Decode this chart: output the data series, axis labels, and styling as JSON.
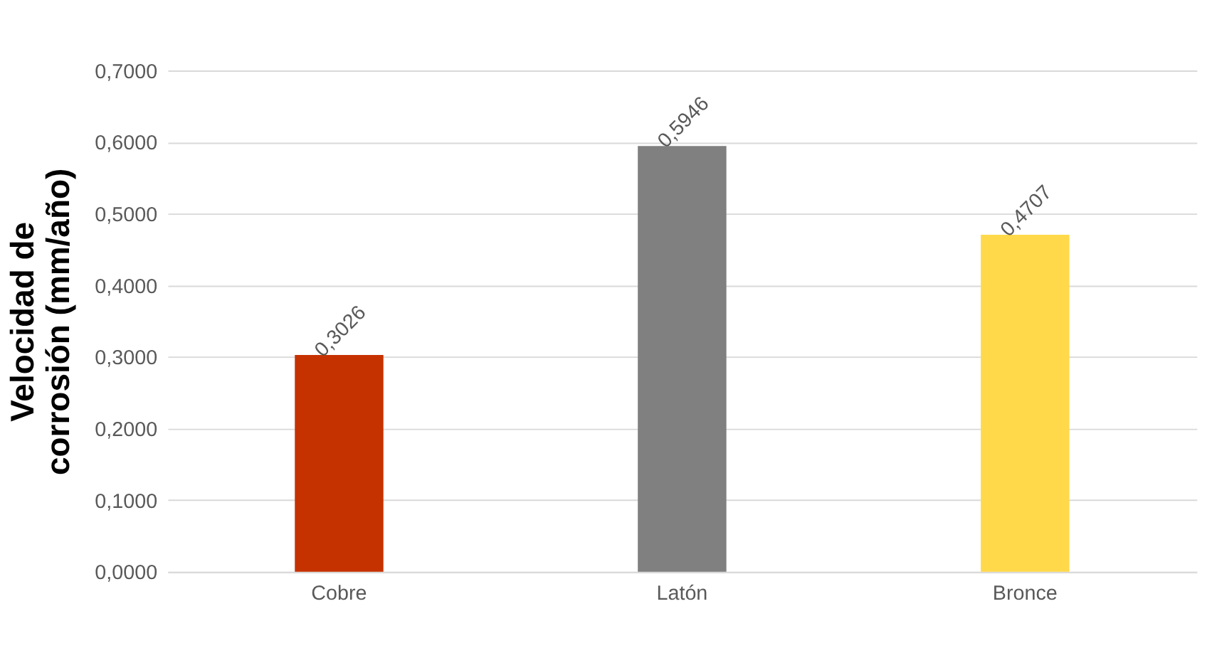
{
  "chart_data": {
    "type": "bar",
    "ylabel": "Velocidad de\ncorrosión (mm/año)",
    "categories": [
      "Cobre",
      "Latón",
      "Bronce"
    ],
    "values": [
      0.3026,
      0.5946,
      0.4707
    ],
    "colors": [
      "#c53200",
      "#808080",
      "#ffd94a"
    ],
    "value_labels": [
      "0,3026",
      "0,5946",
      "0,4707"
    ],
    "ylim": [
      0,
      0.7
    ],
    "yticks": [
      {
        "value": 0,
        "label": "0,0000"
      },
      {
        "value": 0.1,
        "label": "0,1000"
      },
      {
        "value": 0.2,
        "label": "0,2000"
      },
      {
        "value": 0.3,
        "label": "0,3000"
      },
      {
        "value": 0.4,
        "label": "0,4000"
      },
      {
        "value": 0.5,
        "label": "0,5000"
      },
      {
        "value": 0.6,
        "label": "0,6000"
      },
      {
        "value": 0.7,
        "label": "0,7000"
      }
    ],
    "grid": "y",
    "legend": false
  }
}
